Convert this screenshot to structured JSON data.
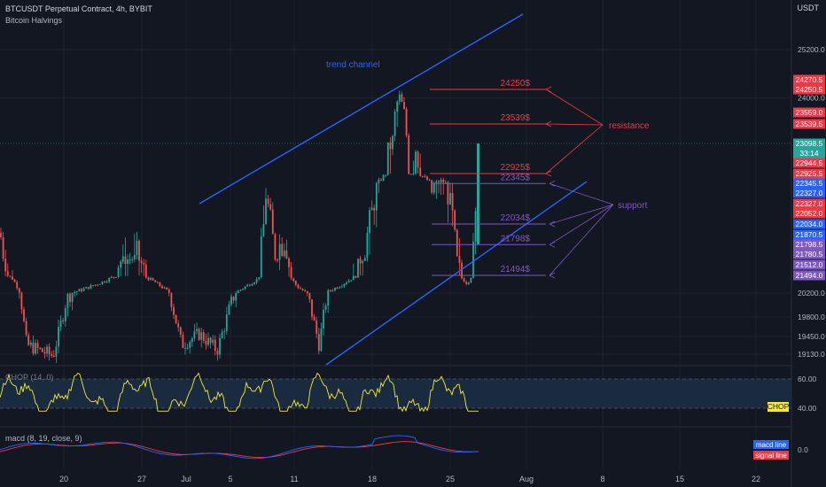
{
  "header": {
    "title": "BTCUSDT Perpetual Contract, 4h, BYBIT",
    "subtitle": "Bitcoin Halvings",
    "currency": "USDT"
  },
  "colors": {
    "background": "#131722",
    "up": "#26a69a",
    "down": "#ef5350",
    "trend": "#2962ff",
    "resistance": "#f23645",
    "support": "#7e57c2",
    "chop": "#f5e83b",
    "macd_line": "#2962ff",
    "signal_line": "#f23645"
  },
  "chart_data": [
    {
      "type": "candlestick",
      "title": "BTCUSDT Perpetual Contract, 4h, BYBIT",
      "y_axis_ticks": [
        25200.0,
        24000.0,
        20200.0,
        19800.0,
        19450.0,
        19130.0
      ],
      "ylim": [
        19050,
        25600
      ],
      "x_tick_labels": [
        "20",
        "27",
        "Jul",
        "5",
        "11",
        "18",
        "25",
        "Aug",
        "8",
        "15",
        "22"
      ],
      "price_labels": [
        {
          "value": "24270.5",
          "color": "#f23645"
        },
        {
          "value": "24250.5",
          "color": "#f23645"
        },
        {
          "value": "23559.0",
          "color": "#f23645"
        },
        {
          "value": "23539.5",
          "color": "#f23645"
        },
        {
          "value": "23098.5",
          "color": "#26a69a"
        },
        {
          "value": "33:14",
          "color": "#26a69a"
        },
        {
          "value": "22944.5",
          "color": "#f23645"
        },
        {
          "value": "22925.5",
          "color": "#f23645"
        },
        {
          "value": "22345.5",
          "color": "#2962ff"
        },
        {
          "value": "22327.0",
          "color": "#2962ff"
        },
        {
          "value": "22327.0",
          "color": "#f23645"
        },
        {
          "value": "22052.0",
          "color": "#f23645"
        },
        {
          "value": "22034.0",
          "color": "#2962ff"
        },
        {
          "value": "21870.5",
          "color": "#2962ff"
        },
        {
          "value": "21798.5",
          "color": "#7e57c2"
        },
        {
          "value": "21780.5",
          "color": "#7e57c2"
        },
        {
          "value": "21512.0",
          "color": "#7e57c2"
        },
        {
          "value": "21494.0",
          "color": "#7e57c2"
        }
      ],
      "levels": [
        {
          "label": "24250$",
          "value": 24250,
          "kind": "resistance"
        },
        {
          "label": "23539$",
          "value": 23539,
          "kind": "resistance"
        },
        {
          "label": "22925$",
          "value": 22925,
          "kind": "resistance"
        },
        {
          "label": "22345$",
          "value": 22345,
          "kind": "support"
        },
        {
          "label": "22034$",
          "value": 22034,
          "kind": "support"
        },
        {
          "label": "21798$",
          "value": 21798,
          "kind": "support"
        },
        {
          "label": "21494$",
          "value": 21494,
          "kind": "support"
        }
      ],
      "annotations": {
        "trend_channel": "trend channel",
        "resistance": "resistance",
        "support": "support"
      },
      "current_price": 23098.5,
      "grid": true
    },
    {
      "type": "line",
      "title": "CHOP (14, 0)",
      "y_axis_ticks": [
        60.0,
        40.0
      ],
      "ylim": [
        30,
        70
      ],
      "series": [
        {
          "name": "CHOP",
          "color": "#f5e83b"
        }
      ]
    },
    {
      "type": "line",
      "title": "macd (8, 19, close, 9)",
      "y_axis_ticks": [
        0.0
      ],
      "series": [
        {
          "name": "macd line",
          "color": "#2962ff"
        },
        {
          "name": "signal line",
          "color": "#f23645"
        }
      ]
    }
  ]
}
